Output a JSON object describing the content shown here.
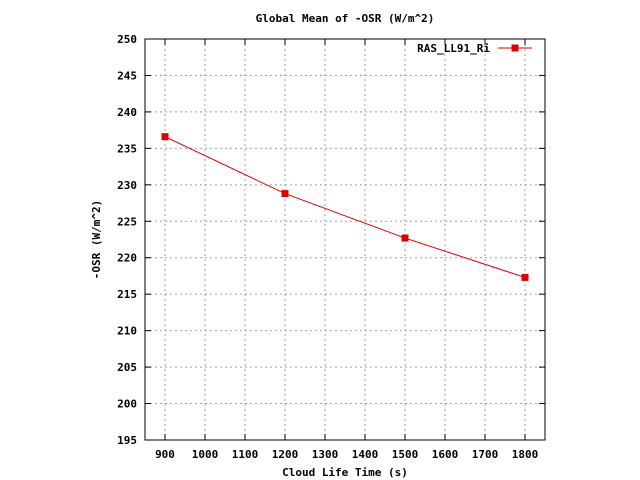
{
  "chart_data": {
    "type": "line",
    "title": "Global Mean of -OSR (W/m^2)",
    "xlabel": "Cloud Life Time (s)",
    "ylabel": "-OSR (W/m^2)",
    "xlim": [
      850,
      1850
    ],
    "ylim": [
      195,
      250
    ],
    "xticks": [
      900,
      1000,
      1100,
      1200,
      1300,
      1400,
      1500,
      1600,
      1700,
      1800
    ],
    "yticks": [
      195,
      200,
      205,
      210,
      215,
      220,
      225,
      230,
      235,
      240,
      245,
      250
    ],
    "grid": true,
    "legend_position": "top-right",
    "series": [
      {
        "name": "RAS_LL91_Ri",
        "color": "#dd0000",
        "marker": "square",
        "x": [
          900,
          1200,
          1500,
          1800
        ],
        "y": [
          236.6,
          228.8,
          222.7,
          217.3
        ]
      }
    ]
  }
}
